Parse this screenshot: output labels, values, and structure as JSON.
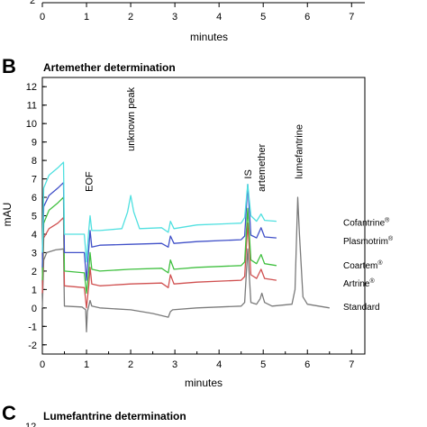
{
  "panel_a_fragment": {
    "ytick_partial": "2",
    "xticks": [
      "0",
      "1",
      "2",
      "3",
      "4",
      "5",
      "6",
      "7"
    ],
    "xlabel": "minutes"
  },
  "panel_b": {
    "letter": "B",
    "title": "Artemether determination"
  },
  "panel_c": {
    "letter": "C",
    "title": "Lumefantrine determination",
    "ytick_partial": "12"
  },
  "chart_data": {
    "type": "line",
    "title": "Artemether determination",
    "xlabel": "minutes",
    "ylabel": "mAU",
    "xlim": [
      0,
      7.3
    ],
    "ylim": [
      -2.5,
      12.5
    ],
    "xticks": [
      0,
      1,
      2,
      3,
      4,
      5,
      6,
      7
    ],
    "yticks": [
      -2,
      -1,
      0,
      1,
      2,
      3,
      4,
      5,
      6,
      7,
      8,
      9,
      10,
      11,
      12
    ],
    "grid": false,
    "annotations": [
      {
        "text": "EOF",
        "x": 1.05
      },
      {
        "text": "unknown peak",
        "x": 2.0
      },
      {
        "text": "IS",
        "x": 4.65
      },
      {
        "text": "artemether",
        "x": 4.95
      },
      {
        "text": "lumefantrine",
        "x": 5.8
      }
    ],
    "series": [
      {
        "name": "Standard",
        "color": "#7a7a7a",
        "baseline": 0.0,
        "points": [
          [
            0,
            0
          ],
          [
            0.03,
            2.6
          ],
          [
            0.1,
            3.0
          ],
          [
            0.3,
            3.15
          ],
          [
            0.48,
            3.2
          ],
          [
            0.5,
            0.1
          ],
          [
            0.9,
            0.05
          ],
          [
            0.98,
            -0.1
          ],
          [
            1.0,
            -1.3
          ],
          [
            1.02,
            -0.2
          ],
          [
            1.05,
            0.1
          ],
          [
            1.08,
            0.4
          ],
          [
            1.12,
            0.1
          ],
          [
            1.3,
            0.0
          ],
          [
            2.0,
            -0.1
          ],
          [
            2.5,
            -0.3
          ],
          [
            2.85,
            -0.5
          ],
          [
            2.9,
            -0.2
          ],
          [
            2.95,
            -0.1
          ],
          [
            3.5,
            0.0
          ],
          [
            4.5,
            0.1
          ],
          [
            4.58,
            0.3
          ],
          [
            4.65,
            3.2
          ],
          [
            4.72,
            0.3
          ],
          [
            4.85,
            0.2
          ],
          [
            4.93,
            0.5
          ],
          [
            4.97,
            0.8
          ],
          [
            5.03,
            0.3
          ],
          [
            5.2,
            0.1
          ],
          [
            5.65,
            0.2
          ],
          [
            5.72,
            1.0
          ],
          [
            5.78,
            6.0
          ],
          [
            5.82,
            4.0
          ],
          [
            5.9,
            0.6
          ],
          [
            6.0,
            0.2
          ],
          [
            6.5,
            0.0
          ]
        ]
      },
      {
        "name": "Artrine®",
        "color": "#d05050",
        "baseline": 1.4,
        "points": [
          [
            0,
            0.8
          ],
          [
            0.03,
            3.8
          ],
          [
            0.15,
            4.3
          ],
          [
            0.35,
            4.6
          ],
          [
            0.48,
            4.9
          ],
          [
            0.5,
            1.2
          ],
          [
            0.95,
            1.1
          ],
          [
            1.0,
            0.0
          ],
          [
            1.05,
            1.2
          ],
          [
            1.08,
            2.2
          ],
          [
            1.12,
            1.3
          ],
          [
            1.3,
            1.2
          ],
          [
            2.0,
            1.3
          ],
          [
            2.7,
            1.35
          ],
          [
            2.85,
            1.1
          ],
          [
            2.9,
            1.8
          ],
          [
            2.98,
            1.3
          ],
          [
            3.5,
            1.4
          ],
          [
            4.5,
            1.5
          ],
          [
            4.58,
            1.7
          ],
          [
            4.65,
            4.6
          ],
          [
            4.72,
            1.8
          ],
          [
            4.85,
            1.6
          ],
          [
            4.95,
            2.1
          ],
          [
            5.03,
            1.6
          ],
          [
            5.3,
            1.5
          ]
        ]
      },
      {
        "name": "Coartem®",
        "color": "#40c040",
        "baseline": 2.2,
        "points": [
          [
            0,
            1.5
          ],
          [
            0.03,
            4.6
          ],
          [
            0.15,
            5.3
          ],
          [
            0.35,
            5.7
          ],
          [
            0.48,
            6.0
          ],
          [
            0.5,
            2.0
          ],
          [
            0.95,
            1.9
          ],
          [
            1.0,
            0.8
          ],
          [
            1.05,
            2.0
          ],
          [
            1.08,
            3.0
          ],
          [
            1.12,
            2.1
          ],
          [
            1.3,
            2.0
          ],
          [
            2.0,
            2.1
          ],
          [
            2.7,
            2.15
          ],
          [
            2.85,
            1.9
          ],
          [
            2.9,
            2.6
          ],
          [
            2.98,
            2.1
          ],
          [
            3.5,
            2.2
          ],
          [
            4.5,
            2.3
          ],
          [
            4.58,
            2.5
          ],
          [
            4.65,
            5.4
          ],
          [
            4.72,
            2.6
          ],
          [
            4.85,
            2.4
          ],
          [
            4.95,
            2.9
          ],
          [
            5.03,
            2.4
          ],
          [
            5.3,
            2.3
          ]
        ]
      },
      {
        "name": "Plasmotrim®",
        "color": "#4050c8",
        "baseline": 3.5,
        "points": [
          [
            0,
            2.2
          ],
          [
            0.03,
            5.5
          ],
          [
            0.15,
            6.1
          ],
          [
            0.35,
            6.5
          ],
          [
            0.48,
            6.8
          ],
          [
            0.5,
            3.0
          ],
          [
            0.95,
            3.0
          ],
          [
            1.0,
            1.5
          ],
          [
            1.05,
            3.2
          ],
          [
            1.08,
            4.2
          ],
          [
            1.12,
            3.3
          ],
          [
            1.3,
            3.4
          ],
          [
            2.0,
            3.45
          ],
          [
            2.7,
            3.5
          ],
          [
            2.85,
            3.3
          ],
          [
            2.9,
            3.9
          ],
          [
            2.98,
            3.5
          ],
          [
            3.5,
            3.6
          ],
          [
            4.5,
            3.7
          ],
          [
            4.58,
            3.9
          ],
          [
            4.65,
            6.7
          ],
          [
            4.72,
            3.95
          ],
          [
            4.85,
            3.8
          ],
          [
            4.95,
            4.35
          ],
          [
            5.03,
            3.85
          ],
          [
            5.3,
            3.8
          ]
        ]
      },
      {
        "name": "Cofantrine®",
        "color": "#50e0e0",
        "baseline": 4.3,
        "points": [
          [
            0,
            3.0
          ],
          [
            0.03,
            6.5
          ],
          [
            0.15,
            7.2
          ],
          [
            0.35,
            7.6
          ],
          [
            0.48,
            7.9
          ],
          [
            0.5,
            4.0
          ],
          [
            0.95,
            4.0
          ],
          [
            1.0,
            2.5
          ],
          [
            1.05,
            4.2
          ],
          [
            1.08,
            5.0
          ],
          [
            1.12,
            4.2
          ],
          [
            1.3,
            4.2
          ],
          [
            1.8,
            4.3
          ],
          [
            1.93,
            5.2
          ],
          [
            2.0,
            6.1
          ],
          [
            2.07,
            5.2
          ],
          [
            2.2,
            4.3
          ],
          [
            2.7,
            4.35
          ],
          [
            2.85,
            4.1
          ],
          [
            2.9,
            4.7
          ],
          [
            2.98,
            4.3
          ],
          [
            3.5,
            4.5
          ],
          [
            4.5,
            4.6
          ],
          [
            4.58,
            4.9
          ],
          [
            4.65,
            6.7
          ],
          [
            4.72,
            5.0
          ],
          [
            4.85,
            4.7
          ],
          [
            4.95,
            5.1
          ],
          [
            5.03,
            4.75
          ],
          [
            5.3,
            4.7
          ]
        ]
      }
    ]
  }
}
